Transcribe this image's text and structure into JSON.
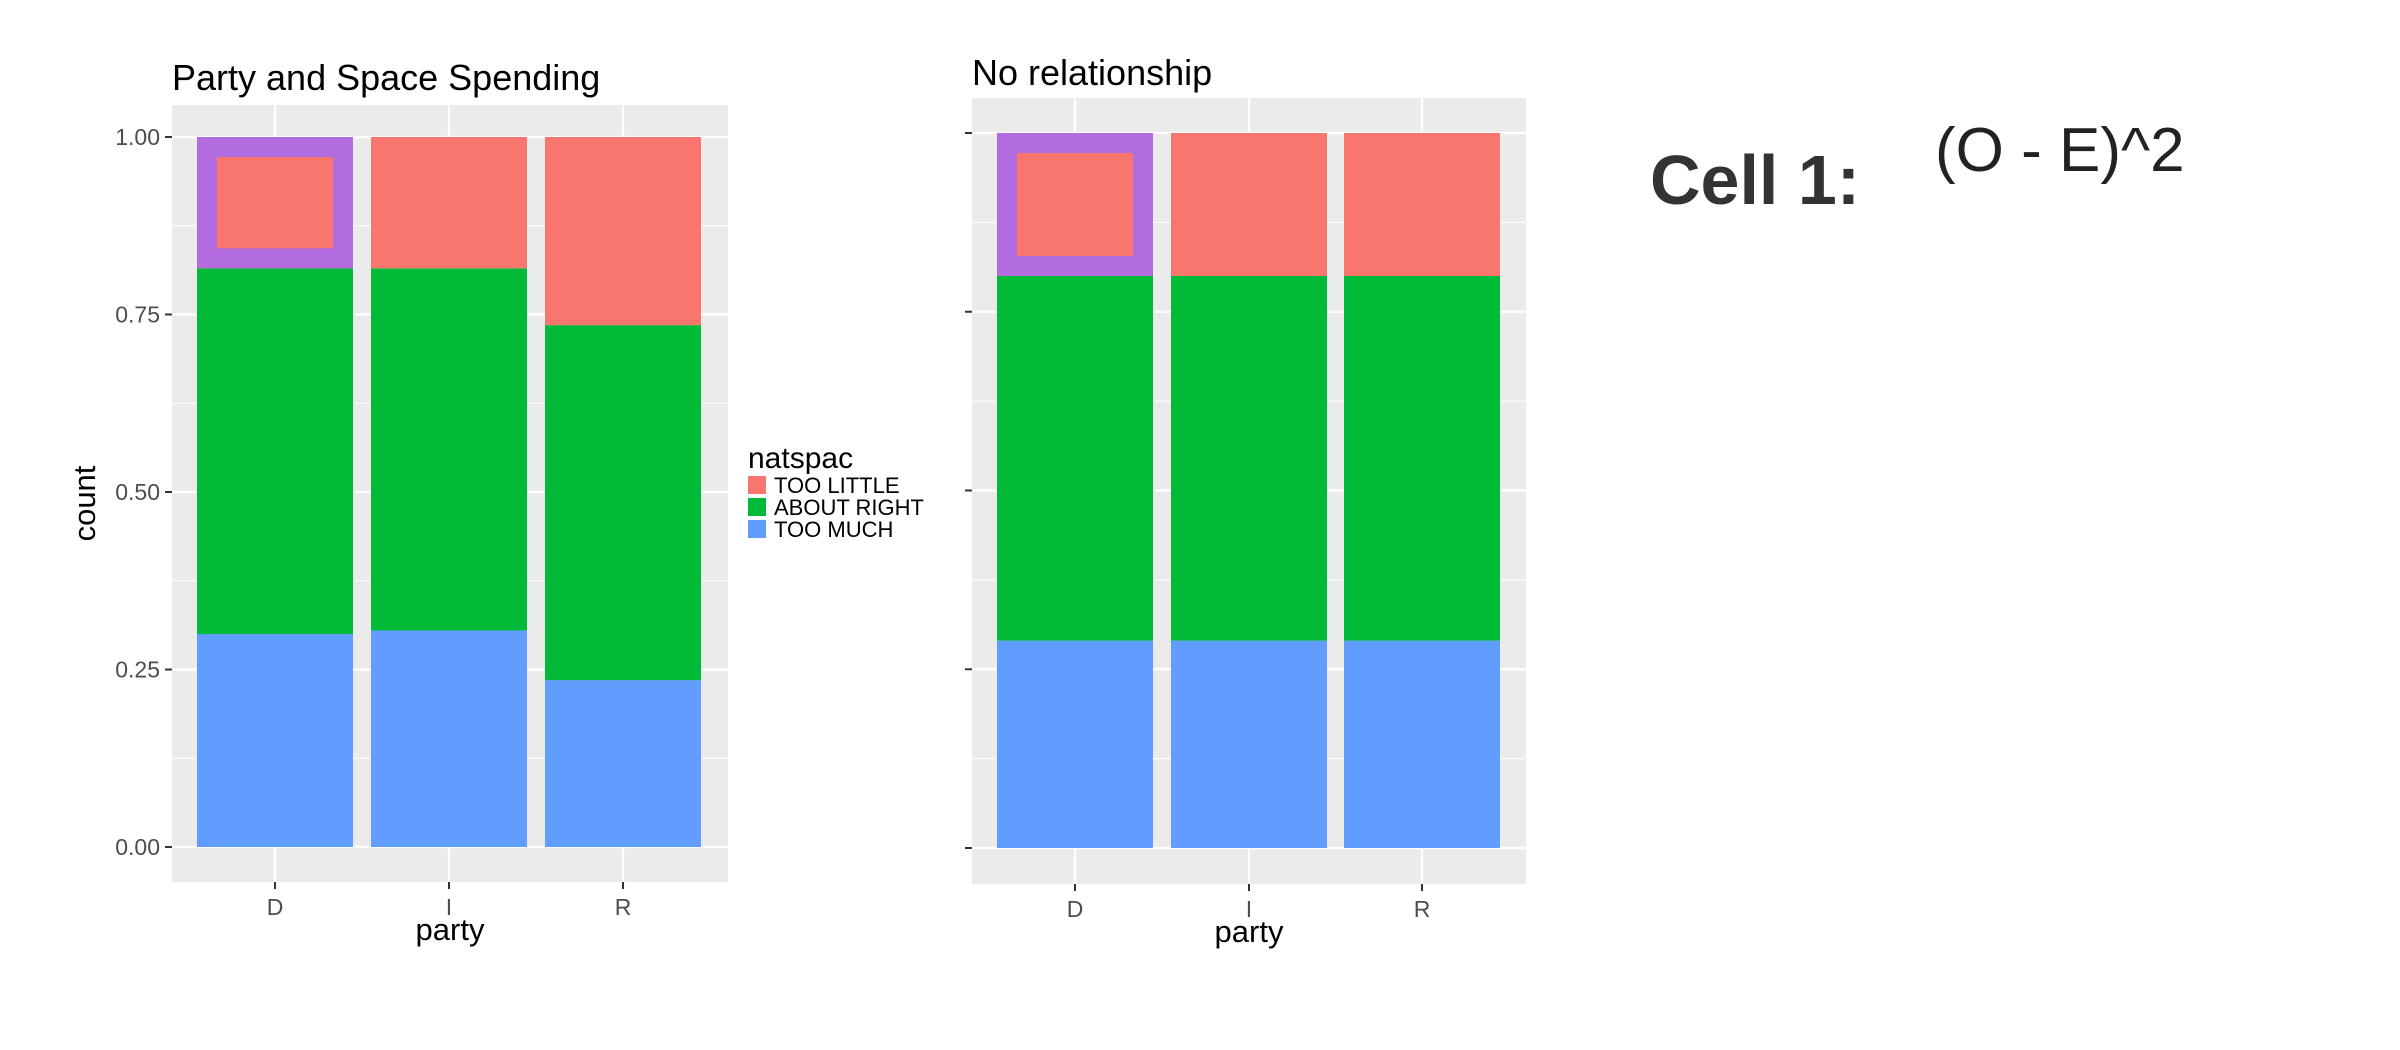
{
  "slide": {
    "cell_label": "Cell 1:",
    "formula": "(O - E)^2"
  },
  "legend": {
    "title": "natspac",
    "entries": [
      {
        "label": "TOO LITTLE",
        "color": "#F8766D"
      },
      {
        "label": "ABOUT RIGHT",
        "color": "#00BA38"
      },
      {
        "label": "TOO MUCH",
        "color": "#619CFF"
      }
    ]
  },
  "highlight_color": "#B36BE0",
  "chart_data": [
    {
      "type": "bar",
      "stacked": true,
      "title": "Party and Space Spending",
      "xlabel": "party",
      "ylabel": "count",
      "categories": [
        "D",
        "I",
        "R"
      ],
      "ylim": [
        0,
        1
      ],
      "yticks": [
        "0.00",
        "0.25",
        "0.50",
        "0.75",
        "1.00"
      ],
      "series": [
        {
          "name": "TOO MUCH",
          "color": "#619CFF",
          "values": [
            0.3,
            0.305,
            0.235
          ]
        },
        {
          "name": "ABOUT RIGHT",
          "color": "#00BA38",
          "values": [
            0.515,
            0.51,
            0.5
          ]
        },
        {
          "name": "TOO LITTLE",
          "color": "#F8766D",
          "values": [
            0.185,
            0.185,
            0.265
          ]
        }
      ],
      "highlight": {
        "category": "D",
        "series": "TOO LITTLE"
      }
    },
    {
      "type": "bar",
      "stacked": true,
      "title": "No relationship",
      "xlabel": "party",
      "ylabel": "",
      "categories": [
        "D",
        "I",
        "R"
      ],
      "ylim": [
        0,
        1
      ],
      "yticks": [],
      "series": [
        {
          "name": "TOO MUCH",
          "color": "#619CFF",
          "values": [
            0.29,
            0.29,
            0.29
          ]
        },
        {
          "name": "ABOUT RIGHT",
          "color": "#00BA38",
          "values": [
            0.51,
            0.51,
            0.51
          ]
        },
        {
          "name": "TOO LITTLE",
          "color": "#F8766D",
          "values": [
            0.2,
            0.2,
            0.2
          ]
        }
      ],
      "highlight": {
        "category": "D",
        "series": "TOO LITTLE"
      }
    }
  ]
}
